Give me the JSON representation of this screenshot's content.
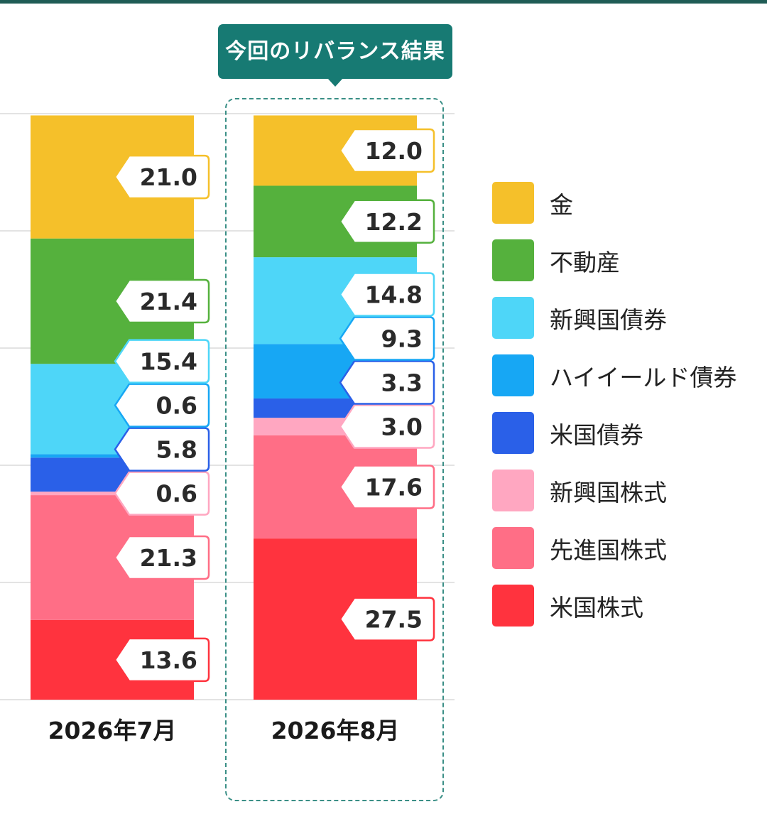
{
  "highlight": {
    "label": "今回のリバランス結果"
  },
  "chart_data": {
    "type": "bar",
    "stacked": true,
    "grid": true,
    "ylim": [
      0,
      100
    ],
    "legend_position": "right",
    "categories": [
      "2026年7月",
      "2026年8月"
    ],
    "highlighted_category": "2026年8月",
    "series": [
      {
        "name": "米国株式",
        "color": "#ff333e",
        "values": [
          13.6,
          27.5
        ]
      },
      {
        "name": "先進国株式",
        "color": "#ff6e86",
        "values": [
          21.3,
          17.6
        ]
      },
      {
        "name": "新興国株式",
        "color": "#ffa7c1",
        "values": [
          0.6,
          3.0
        ]
      },
      {
        "name": "米国債券",
        "color": "#2a60e8",
        "values": [
          5.8,
          3.3
        ]
      },
      {
        "name": "ハイイールド債券",
        "color": "#17a7f4",
        "values": [
          0.6,
          9.3
        ]
      },
      {
        "name": "新興国債券",
        "color": "#4ed6f8",
        "values": [
          15.4,
          14.8
        ]
      },
      {
        "name": "不動産",
        "color": "#55b13d",
        "values": [
          21.4,
          12.2
        ]
      },
      {
        "name": "金",
        "color": "#f5c02a",
        "values": [
          21.0,
          12.0
        ]
      }
    ],
    "legend_order": [
      "金",
      "不動産",
      "新興国債券",
      "ハイイールド債券",
      "米国債券",
      "新興国株式",
      "先進国株式",
      "米国株式"
    ]
  }
}
